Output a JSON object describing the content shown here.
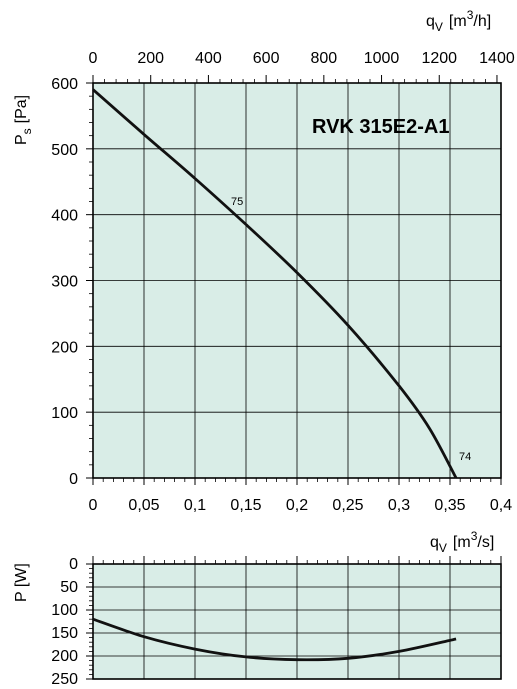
{
  "chart_data": [
    {
      "type": "line",
      "title": "RVK 315E2-A1",
      "ylabel_main": "P",
      "ylabel_sub": "s",
      "ylabel_unit": "[Pa]",
      "x_top": {
        "label_main": "q",
        "label_sub": "V",
        "label_unit": "[m",
        "label_sup": "3",
        "label_unit_end": "/h]",
        "ticks": [
          0,
          200,
          400,
          600,
          800,
          1000,
          1200,
          1400
        ],
        "tick_labels": [
          "0",
          "200",
          "400",
          "600",
          "800",
          "1000",
          "1200",
          "1400"
        ],
        "range": [
          0,
          1414
        ]
      },
      "x_bottom": {
        "ticks": [
          0,
          0.05,
          0.1,
          0.15,
          0.2,
          0.25,
          0.3,
          0.35,
          0.4
        ],
        "tick_labels": [
          "0",
          "0,05",
          "0,1",
          "0,15",
          "0,2",
          "0,25",
          "0,3",
          "0,35",
          "0,4"
        ],
        "range": [
          0,
          0.4
        ]
      },
      "y": {
        "ticks": [
          0,
          100,
          200,
          300,
          400,
          500,
          600
        ],
        "tick_labels": [
          "0",
          "100",
          "200",
          "300",
          "400",
          "500",
          "600"
        ],
        "range": [
          0,
          600
        ]
      },
      "grid": true,
      "series": [
        {
          "label": "75",
          "points": [
            [
              0,
              590
            ],
            [
              0.05,
              522
            ],
            [
              0.1,
              455
            ],
            [
              0.15,
              385
            ],
            [
              0.2,
              312
            ],
            [
              0.25,
              232
            ],
            [
              0.3,
              140
            ],
            [
              0.33,
              75
            ],
            [
              0.356,
              0
            ]
          ]
        }
      ],
      "end_label": "74"
    },
    {
      "type": "line",
      "ylabel": "P [W]",
      "x": {
        "label_main": "q",
        "label_sub": "V",
        "label_unit": "[m",
        "label_sup": "3",
        "label_unit_end": "/s]",
        "range": [
          0,
          0.4
        ]
      },
      "y": {
        "ticks": [
          0,
          50,
          100,
          150,
          200,
          250
        ],
        "tick_labels": [
          "0",
          "50",
          "100",
          "150",
          "200",
          "250"
        ],
        "range": [
          0,
          250
        ],
        "inverted": true
      },
      "grid": true,
      "series": [
        {
          "points": [
            [
              0,
              120
            ],
            [
              0.05,
              158
            ],
            [
              0.1,
              185
            ],
            [
              0.15,
              202
            ],
            [
              0.2,
              208
            ],
            [
              0.25,
              205
            ],
            [
              0.3,
              190
            ],
            [
              0.356,
              163
            ]
          ]
        }
      ]
    }
  ]
}
